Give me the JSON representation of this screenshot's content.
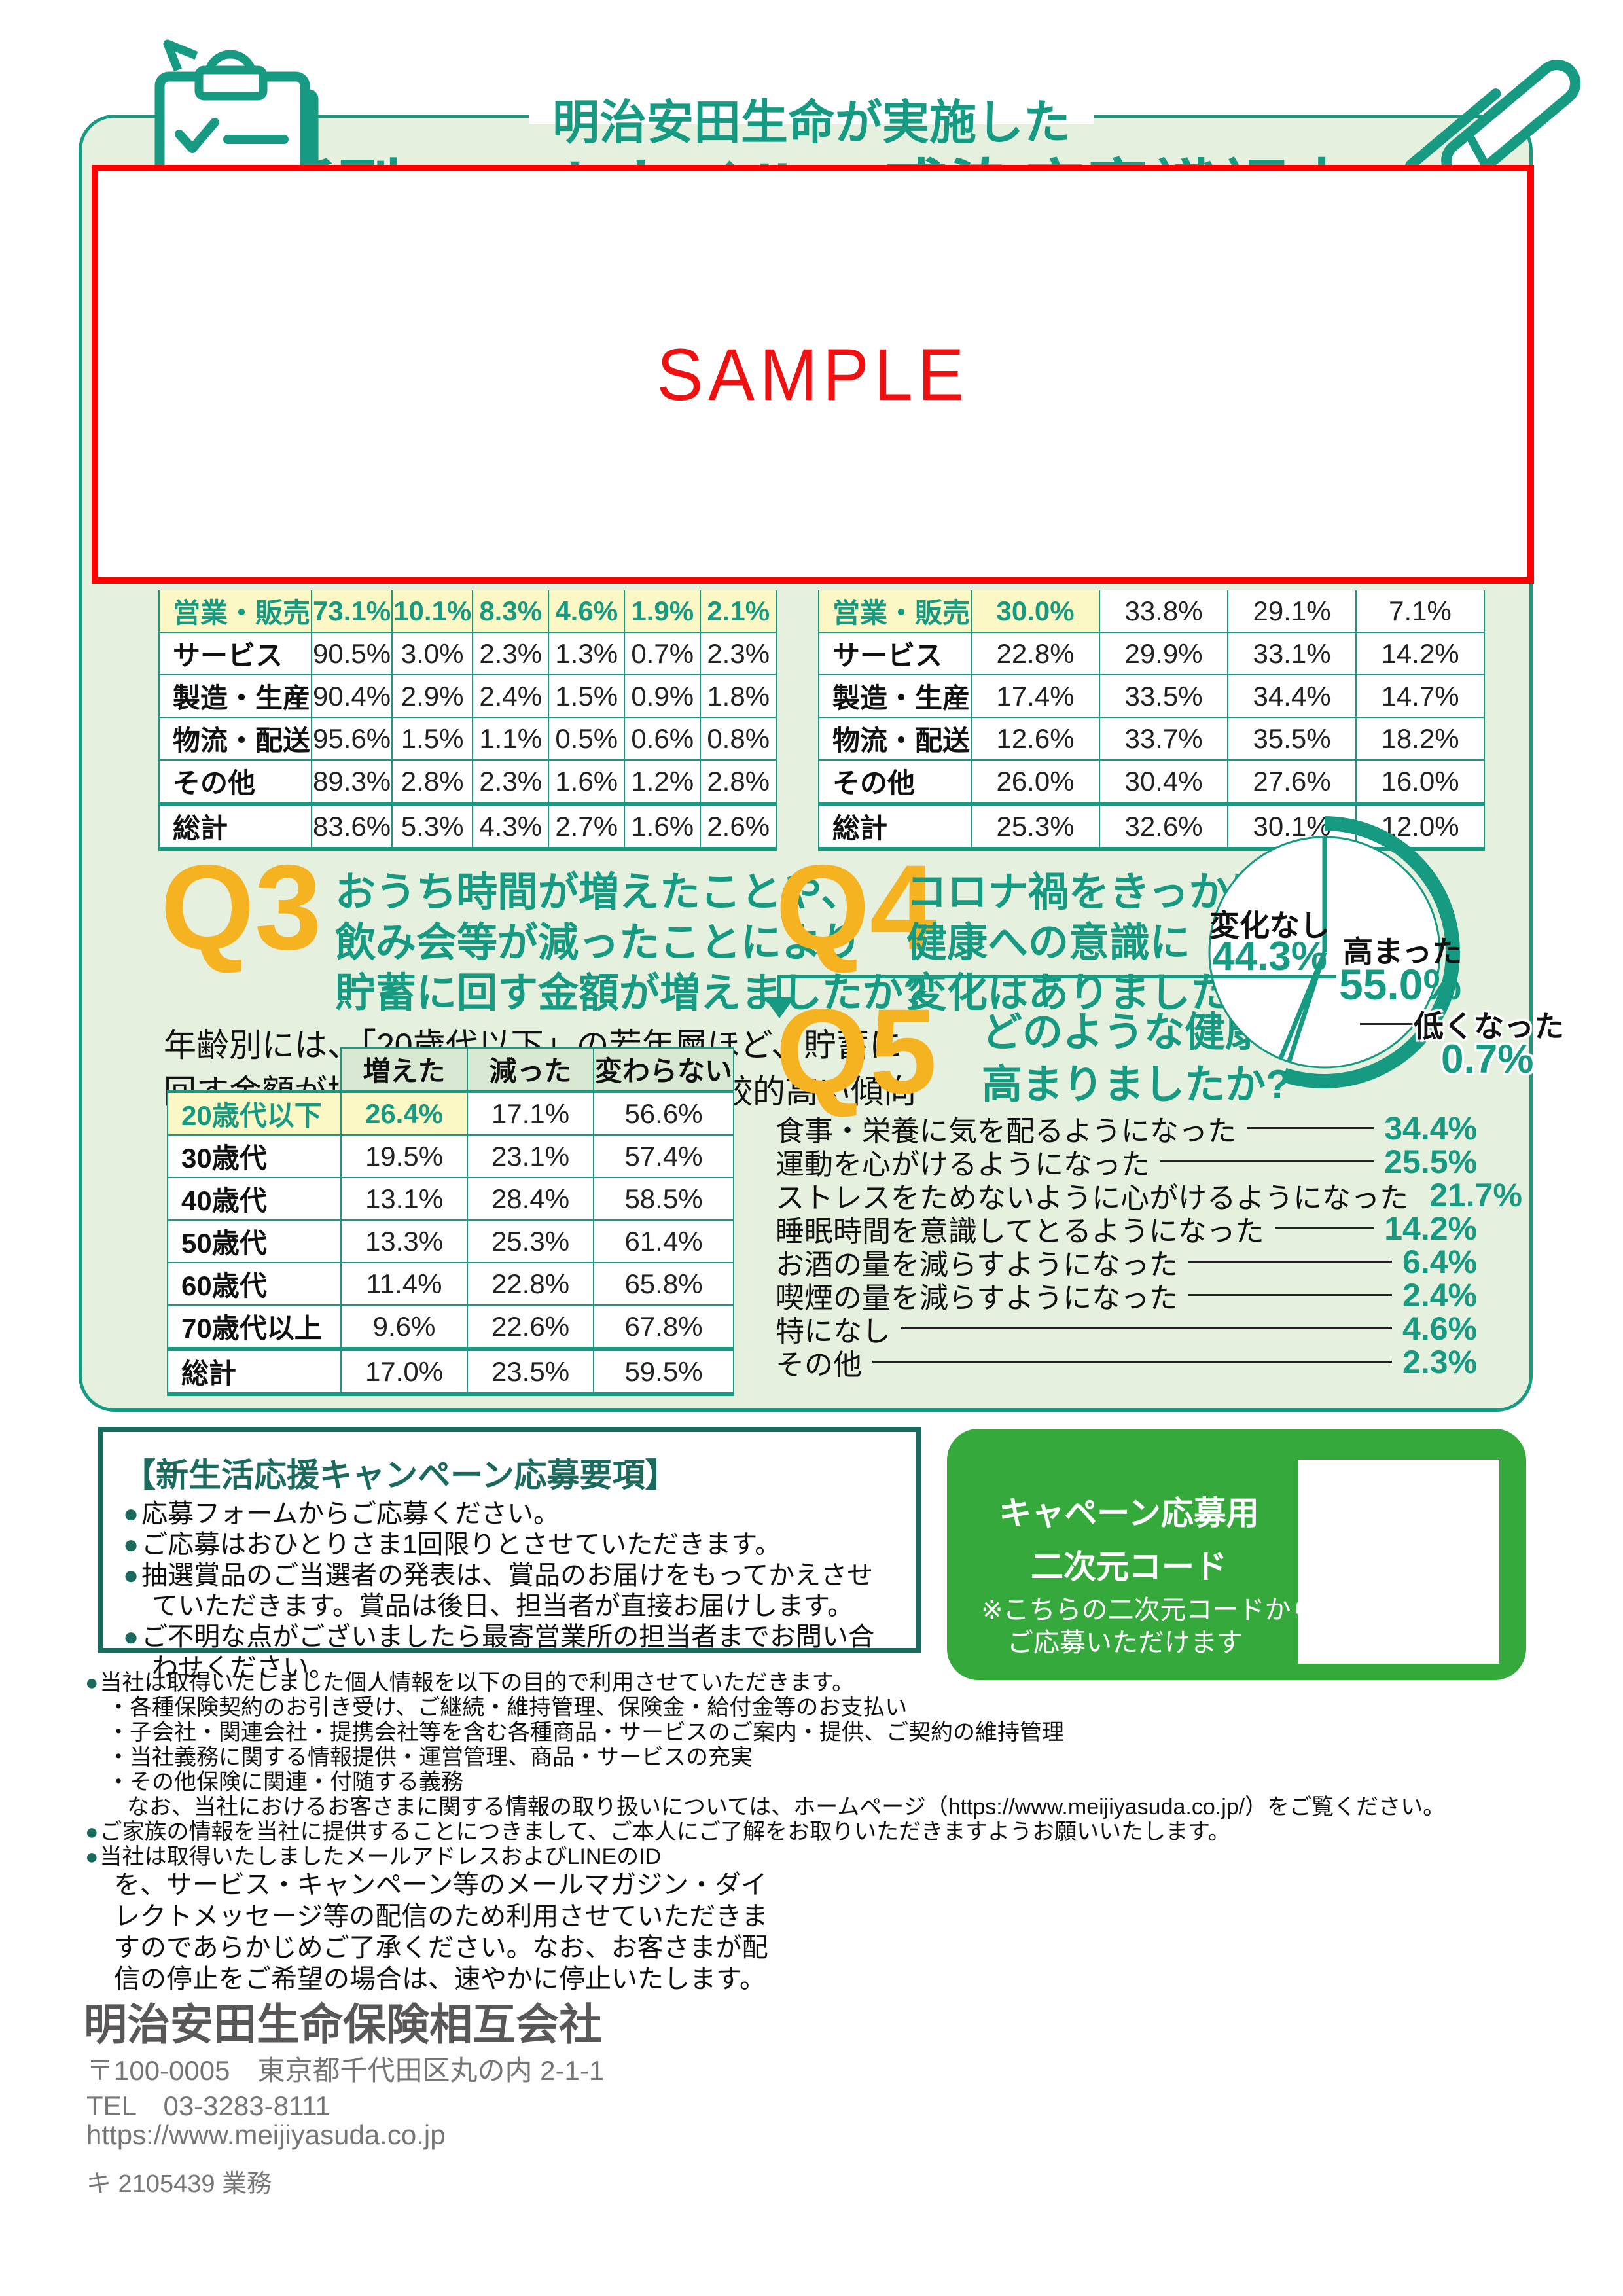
{
  "header": {
    "subtitle": "明治安田生命が実施した",
    "title": "「新型コロナウイルス感染症意識調査」",
    "sample_watermark": "SAMPLE"
  },
  "accent_colors": {
    "teal": "#169a82",
    "dark_teal": "#1a6b5e",
    "orange": "#f6b321",
    "highlight_yellow": "#fcf8c6",
    "panel_green": "#e6f0df",
    "qr_green": "#35a93c",
    "sample_red": "#ff0000"
  },
  "occupation_table_left": {
    "rows": [
      {
        "label": "営業・販売",
        "values": [
          "73.1%",
          "10.1%",
          "8.3%",
          "4.6%",
          "1.9%",
          "2.1%"
        ],
        "highlight": true
      },
      {
        "label": "サービス",
        "values": [
          "90.5%",
          "3.0%",
          "2.3%",
          "1.3%",
          "0.7%",
          "2.3%"
        ]
      },
      {
        "label": "製造・生産",
        "values": [
          "90.4%",
          "2.9%",
          "2.4%",
          "1.5%",
          "0.9%",
          "1.8%"
        ]
      },
      {
        "label": "物流・配送",
        "values": [
          "95.6%",
          "1.5%",
          "1.1%",
          "0.5%",
          "0.6%",
          "0.8%"
        ]
      },
      {
        "label": "その他",
        "values": [
          "89.3%",
          "2.8%",
          "2.3%",
          "1.6%",
          "1.2%",
          "2.8%"
        ]
      },
      {
        "label": "総計",
        "values": [
          "83.6%",
          "5.3%",
          "4.3%",
          "2.7%",
          "1.6%",
          "2.6%"
        ],
        "total": true
      }
    ]
  },
  "occupation_table_right": {
    "rows": [
      {
        "label": "営業・販売",
        "values": [
          "30.0%",
          "33.8%",
          "29.1%",
          "7.1%"
        ],
        "highlight": true
      },
      {
        "label": "サービス",
        "values": [
          "22.8%",
          "29.9%",
          "33.1%",
          "14.2%"
        ]
      },
      {
        "label": "製造・生産",
        "values": [
          "17.4%",
          "33.5%",
          "34.4%",
          "14.7%"
        ]
      },
      {
        "label": "物流・配送",
        "values": [
          "12.6%",
          "33.7%",
          "35.5%",
          "18.2%"
        ]
      },
      {
        "label": "その他",
        "values": [
          "26.0%",
          "30.4%",
          "27.6%",
          "16.0%"
        ]
      },
      {
        "label": "総計",
        "values": [
          "25.3%",
          "32.6%",
          "30.1%",
          "12.0%"
        ],
        "total": true
      }
    ]
  },
  "q3": {
    "label": "Q3",
    "question": "おうち時間が増えたことや、\n飲み会等が減ったことにより\n貯蓄に回す金額が増えましたか?",
    "note": "年齢別には、「20歳代以下」の若年層ほど、貯蓄に\n回す金額が増えたと回答した占率が比較的高い傾向",
    "table": {
      "headers": [
        "増えた",
        "減った",
        "変わらない"
      ],
      "rows": [
        {
          "label": "20歳代以下",
          "values": [
            "26.4%",
            "17.1%",
            "56.6%"
          ],
          "highlight": true
        },
        {
          "label": "30歳代",
          "values": [
            "19.5%",
            "23.1%",
            "57.4%"
          ]
        },
        {
          "label": "40歳代",
          "values": [
            "13.1%",
            "28.4%",
            "58.5%"
          ]
        },
        {
          "label": "50歳代",
          "values": [
            "13.3%",
            "25.3%",
            "61.4%"
          ]
        },
        {
          "label": "60歳代",
          "values": [
            "11.4%",
            "22.8%",
            "65.8%"
          ]
        },
        {
          "label": "70歳代以上",
          "values": [
            "9.6%",
            "22.6%",
            "67.8%"
          ]
        },
        {
          "label": "総計",
          "values": [
            "17.0%",
            "23.5%",
            "59.5%"
          ],
          "total": true
        }
      ]
    }
  },
  "q4": {
    "label": "Q4",
    "question": "コロナ禍をきっかけに、\n健康への意識に\n変化はありましたか?",
    "pie": {
      "slices": [
        {
          "name": "高まった",
          "value": 55.0,
          "display": "55.0%"
        },
        {
          "name": "低くなった",
          "value": 0.7,
          "display": "0.7%"
        },
        {
          "name": "変化なし",
          "value": 44.3,
          "display": "44.3%"
        }
      ]
    }
  },
  "q5": {
    "label": "Q5",
    "question": "どのような健康意識が\n高まりましたか?",
    "items": [
      {
        "label": "食事・栄養に気を配るようになった",
        "value": "34.4%"
      },
      {
        "label": "運動を心がけるようになった",
        "value": "25.5%"
      },
      {
        "label": "ストレスをためないように心がけるようになった",
        "value": "21.7%"
      },
      {
        "label": "睡眠時間を意識してとるようになった",
        "value": "14.2%"
      },
      {
        "label": "お酒の量を減らすようになった",
        "value": "6.4%"
      },
      {
        "label": "喫煙の量を減らすようになった",
        "value": "2.4%"
      },
      {
        "label": "特になし",
        "value": "4.6%"
      },
      {
        "label": "その他",
        "value": "2.3%"
      }
    ]
  },
  "campaign": {
    "title": "【新生活応援キャンペーン応募要項】",
    "items": [
      "応募フォームからご応募ください。",
      "ご応募はおひとりさま1回限りとさせていただきます。",
      "抽選賞品のご当選者の発表は、賞品のお届けをもってかえさせていただきます。賞品は後日、担当者が直接お届けします。",
      "ご不明な点がございましたら最寄営業所の担当者までお問い合わせください。"
    ]
  },
  "qr_box": {
    "title": "キャペーン応募用\n二次元コード",
    "note": "※こちらの二次元コードからも\n　ご応募いただけます"
  },
  "privacy": {
    "lines": [
      {
        "b": "●",
        "t": "当社は取得いたしました個人情報を以下の目的で利用させていただきます。",
        "indent": "p0"
      },
      {
        "b": "・",
        "t": "各種保険契約のお引き受け、ご継続・維持管理、保険金・給付金等のお支払い",
        "indent": "p1"
      },
      {
        "b": "・",
        "t": "子会社・関連会社・提携会社等を含む各種商品・サービスのご案内・提供、ご契約の維持管理",
        "indent": "p1"
      },
      {
        "b": "・",
        "t": "当社義務に関する情報提供・運営管理、商品・サービスの充実",
        "indent": "p1"
      },
      {
        "b": "・",
        "t": "その他保険に関連・付随する義務",
        "indent": "p1"
      },
      {
        "b": "",
        "t": "なお、当社におけるお客さまに関する情報の取り扱いについては、ホームページ（https://www.meijiyasuda.co.jp/）をご覧ください。",
        "indent": "p2"
      },
      {
        "b": "●",
        "t": "ご家族の情報を当社に提供することにつきまして、ご本人にご了解をお取りいただきますようお願いいたします。",
        "indent": "p0"
      },
      {
        "b": "●",
        "t": "当社は取得いたしましたメールアドレスおよびLINEのID",
        "indent": "p0"
      },
      {
        "b": "",
        "t": "を、サービス・キャンペーン等のメールマガジン・ダイ",
        "indent": "pw"
      },
      {
        "b": "",
        "t": "レクトメッセージ等の配信のため利用させていただきま",
        "indent": "pw"
      },
      {
        "b": "",
        "t": "すのであらかじめご了承ください。なお、お客さまが配",
        "indent": "pw"
      },
      {
        "b": "",
        "t": "信の停止をご希望の場合は、速やかに停止いたします。",
        "indent": "pw"
      }
    ]
  },
  "footer": {
    "company": "明治安田生命保険相互会社",
    "address": "〒100-0005　東京都千代田区丸の内 2-1-1",
    "tel": "TEL　03-3283-8111",
    "url": "https://www.meijiyasuda.co.jp",
    "doc_code": "キ 2105439 業務"
  }
}
